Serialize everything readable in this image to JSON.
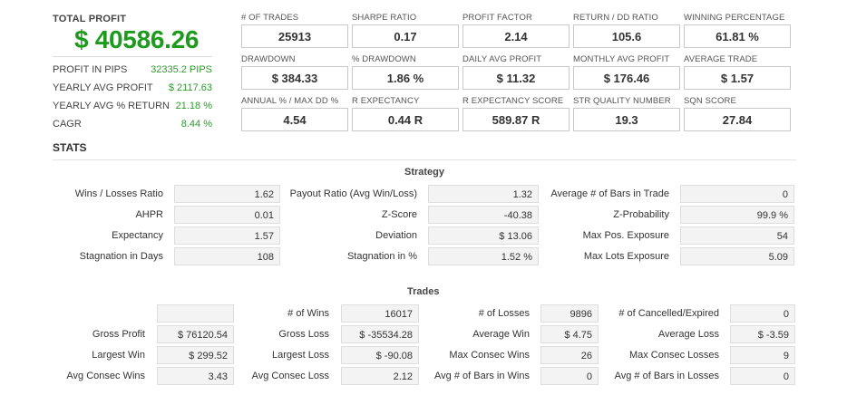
{
  "total_profit": {
    "label": "TOTAL PROFIT",
    "value": "$ 40586.26",
    "rows": [
      {
        "label": "PROFIT IN PIPS",
        "value": "32335.2 PIPS"
      },
      {
        "label": "YEARLY AVG PROFIT",
        "value": "$ 2117.63"
      },
      {
        "label": "YEARLY AVG % RETURN",
        "value": "21.18 %"
      },
      {
        "label": "CAGR",
        "value": "8.44 %"
      }
    ]
  },
  "metrics": [
    {
      "label": "# OF TRADES",
      "value": "25913"
    },
    {
      "label": "SHARPE RATIO",
      "value": "0.17"
    },
    {
      "label": "PROFIT FACTOR",
      "value": "2.14"
    },
    {
      "label": "RETURN / DD RATIO",
      "value": "105.6"
    },
    {
      "label": "WINNING PERCENTAGE",
      "value": "61.81 %"
    },
    {
      "label": "DRAWDOWN",
      "value": "$ 384.33"
    },
    {
      "label": "% DRAWDOWN",
      "value": "1.86 %"
    },
    {
      "label": "DAILY AVG PROFIT",
      "value": "$ 11.32"
    },
    {
      "label": "MONTHLY AVG PROFIT",
      "value": "$ 176.46"
    },
    {
      "label": "AVERAGE TRADE",
      "value": "$ 1.57"
    },
    {
      "label": "ANNUAL % / MAX DD %",
      "value": "4.54"
    },
    {
      "label": "R EXPECTANCY",
      "value": "0.44 R"
    },
    {
      "label": "R EXPECTANCY SCORE",
      "value": "589.87 R"
    },
    {
      "label": "STR QUALITY NUMBER",
      "value": "19.3"
    },
    {
      "label": "SQN SCORE",
      "value": "27.84"
    }
  ],
  "stats": {
    "title": "STATS",
    "strategy": {
      "title": "Strategy",
      "rows": [
        [
          {
            "label": "Wins / Losses Ratio",
            "value": "1.62"
          },
          {
            "label": "Payout Ratio (Avg Win/Loss)",
            "value": "1.32"
          },
          {
            "label": "Average # of Bars in Trade",
            "value": "0"
          }
        ],
        [
          {
            "label": "AHPR",
            "value": "0.01"
          },
          {
            "label": "Z-Score",
            "value": "-40.38"
          },
          {
            "label": "Z-Probability",
            "value": "99.9 %"
          }
        ],
        [
          {
            "label": "Expectancy",
            "value": "1.57"
          },
          {
            "label": "Deviation",
            "value": "$ 13.06"
          },
          {
            "label": "Max Pos. Exposure",
            "value": "54"
          }
        ],
        [
          {
            "label": "Stagnation in Days",
            "value": "108"
          },
          {
            "label": "Stagnation in %",
            "value": "1.52 %"
          },
          {
            "label": "Max Lots Exposure",
            "value": "5.09"
          }
        ]
      ]
    },
    "trades": {
      "title": "Trades",
      "rows": [
        [
          {
            "label": "",
            "value": ""
          },
          {
            "label": "# of Wins",
            "value": "16017"
          },
          {
            "label": "# of Losses",
            "value": "9896"
          },
          {
            "label": "# of Cancelled/Expired",
            "value": "0"
          }
        ],
        [
          {
            "label": "Gross Profit",
            "value": "$ 76120.54"
          },
          {
            "label": "Gross Loss",
            "value": "$ -35534.28"
          },
          {
            "label": "Average Win",
            "value": "$ 4.75"
          },
          {
            "label": "Average Loss",
            "value": "$ -3.59"
          }
        ],
        [
          {
            "label": "Largest Win",
            "value": "$ 299.52"
          },
          {
            "label": "Largest Loss",
            "value": "$ -90.08"
          },
          {
            "label": "Max Consec Wins",
            "value": "26"
          },
          {
            "label": "Max Consec Losses",
            "value": "9"
          }
        ],
        [
          {
            "label": "Avg Consec Wins",
            "value": "3.43"
          },
          {
            "label": "Avg Consec Loss",
            "value": "2.12"
          },
          {
            "label": "Avg # of Bars in Wins",
            "value": "0"
          },
          {
            "label": "Avg # of Bars in Losses",
            "value": "0"
          }
        ]
      ]
    }
  }
}
